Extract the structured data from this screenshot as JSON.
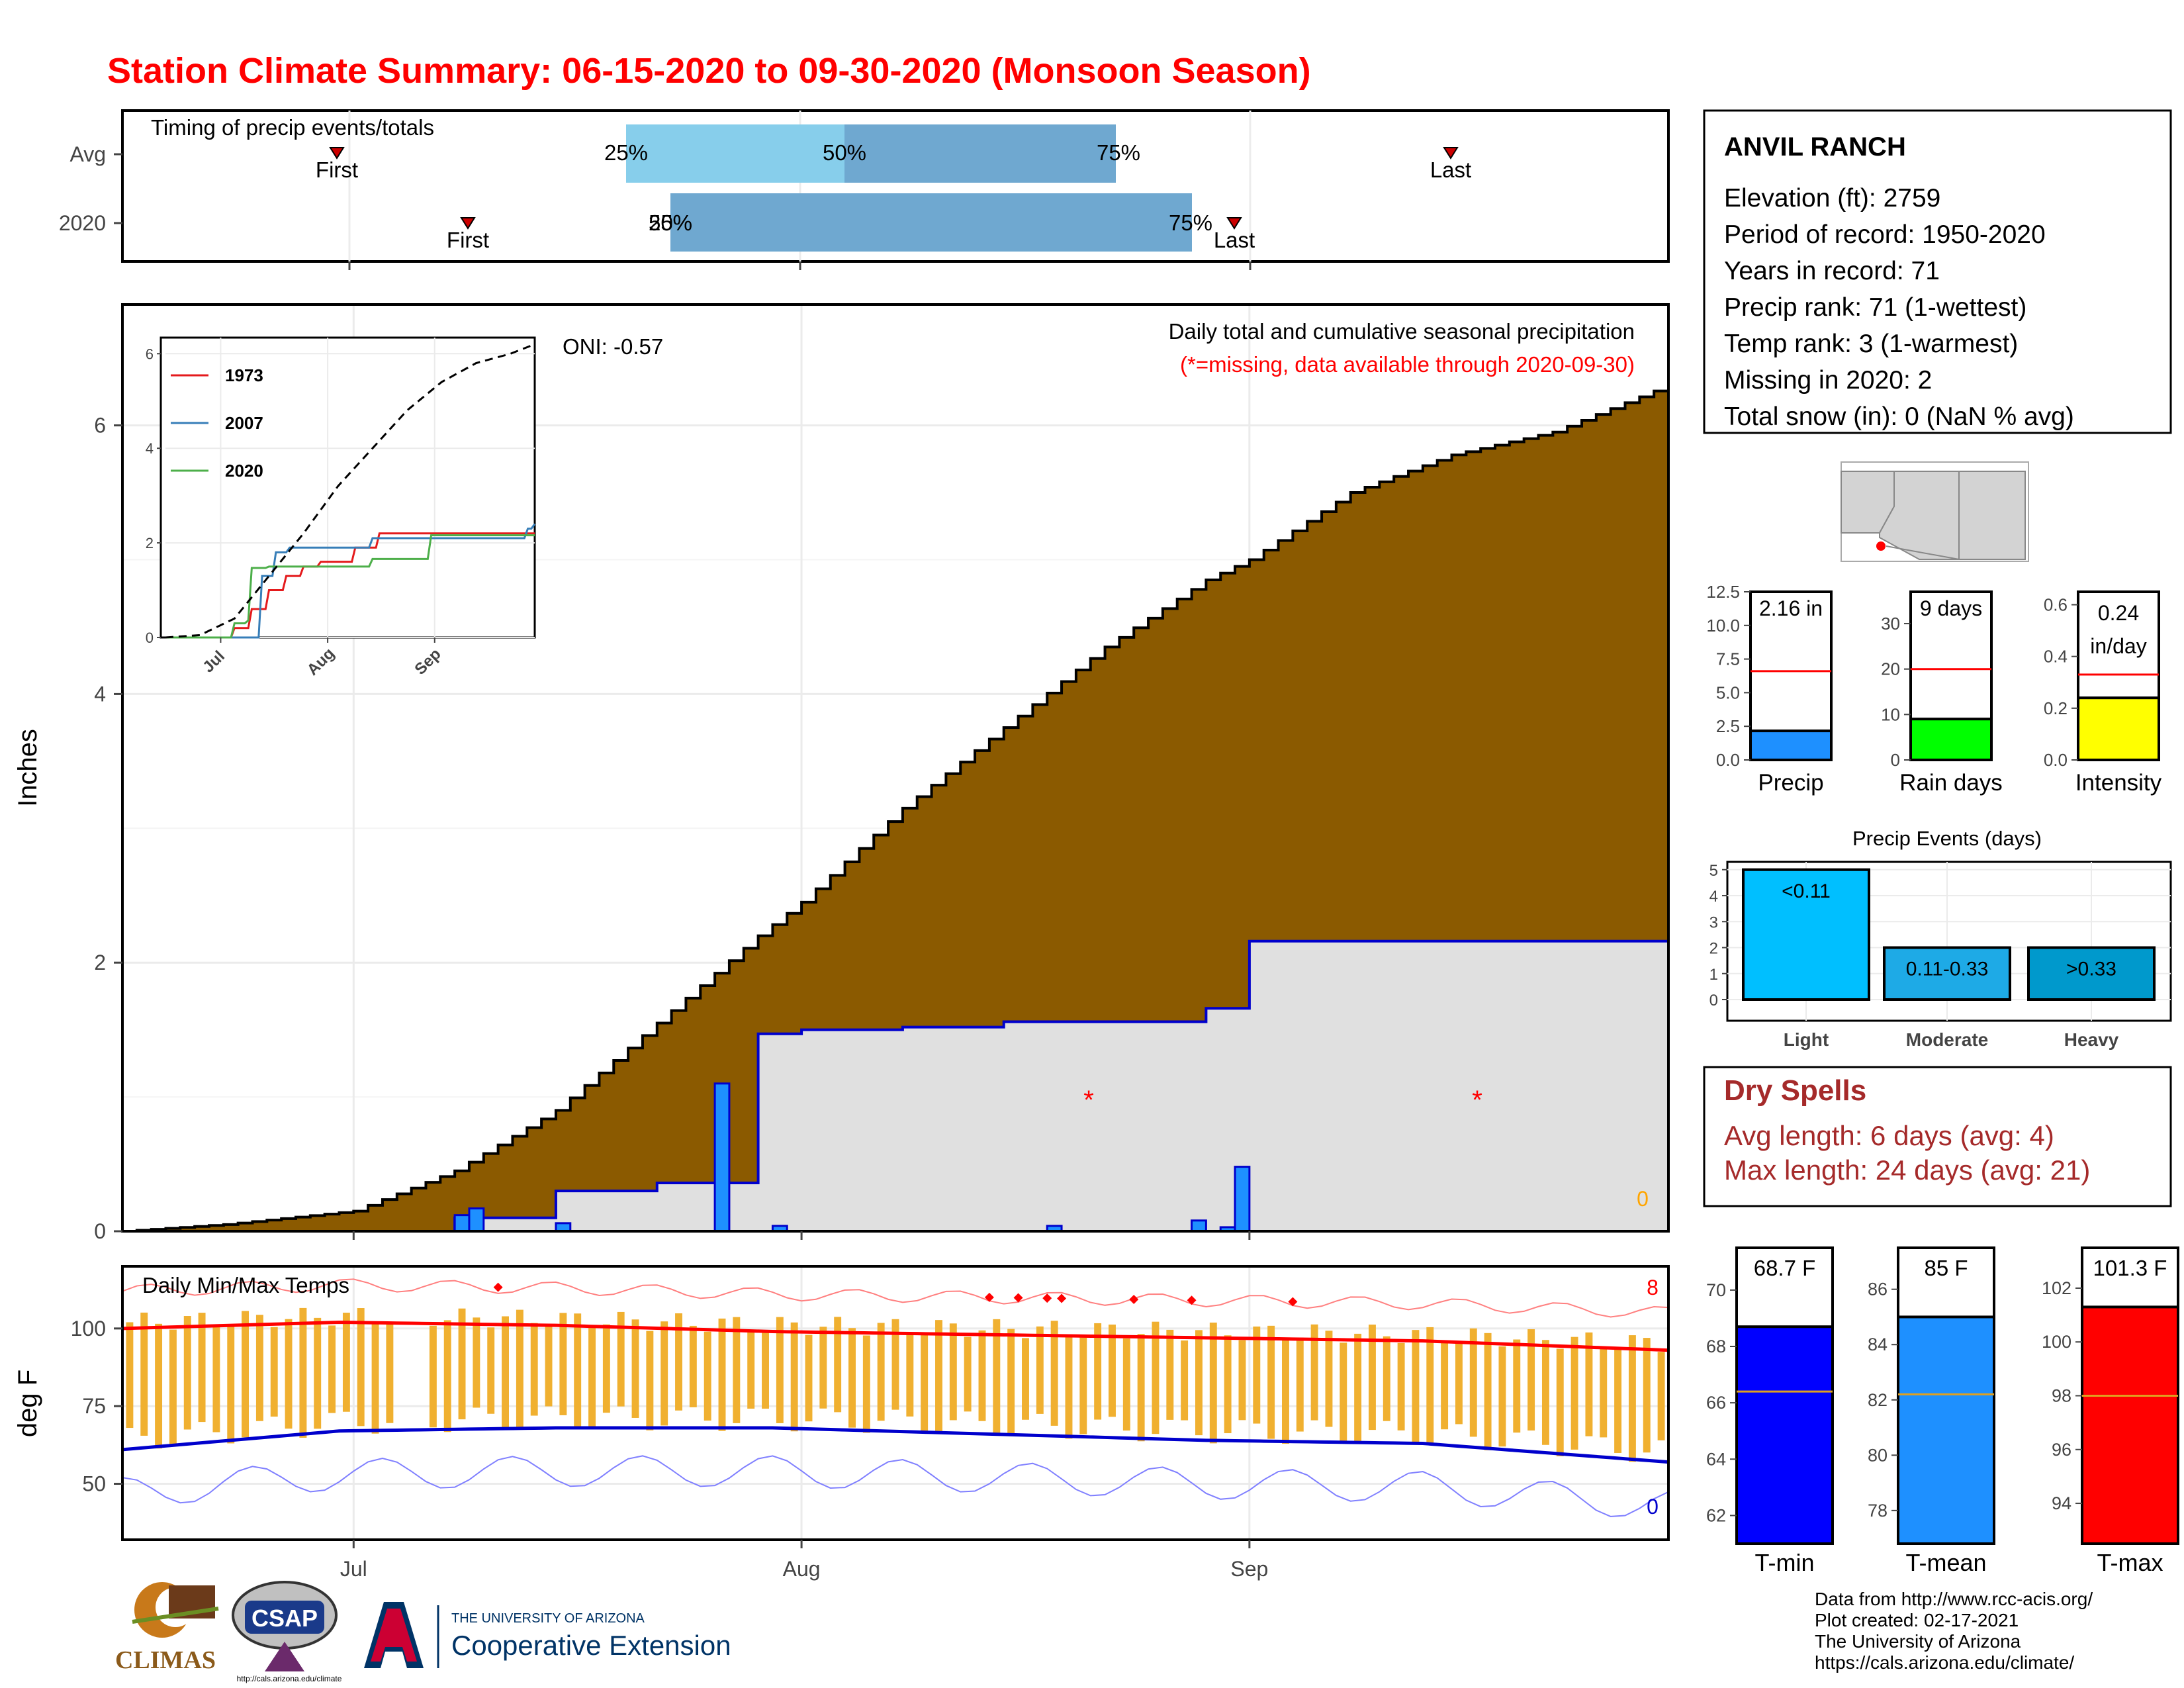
{
  "title": "Station Climate Summary: 06-15-2020 to 09-30-2020 (Monsoon Season)",
  "colors": {
    "title_red": "#ff0000",
    "brown": "#8b5a00",
    "light_blue": "#87ceeb",
    "mid_blue": "#6fa8d0",
    "bar_blue": "#1e90ff",
    "orange": "#f0b030",
    "red": "#ff0000",
    "navy": "#0000cc",
    "green": "#00ff00",
    "yellow": "#ffff00",
    "cyan": "#00bfff",
    "dry_red": "#a52a2a"
  },
  "timing": {
    "title": "Timing of precip events/totals",
    "rows": [
      "Avg",
      "2020"
    ],
    "avg": {
      "first_label": "First",
      "q25": "25%",
      "q50": "50%",
      "q75": "75%",
      "last_label": "Last"
    },
    "y2020": {
      "first_label": "First",
      "q25": "25%",
      "q50": "50%",
      "q75": "75%",
      "last_label": "Last"
    }
  },
  "main": {
    "ylabel": "Inches",
    "note1": "Daily total and cumulative seasonal precipitation",
    "note2": "(*=missing, data available through 2020-09-30)",
    "oni": "ONI: -0.57",
    "zero_label": "0",
    "yticks": [
      "0",
      "2",
      "4",
      "6"
    ],
    "xticks": [
      "Jul",
      "Aug",
      "Sep"
    ]
  },
  "inset": {
    "yticks": [
      "0",
      "2",
      "4",
      "6"
    ],
    "xticks": [
      "Jul",
      "Aug",
      "Sep"
    ],
    "legend": [
      {
        "name": "1973",
        "color": "#e41a1c"
      },
      {
        "name": "2007",
        "color": "#377eb8"
      },
      {
        "name": "2020",
        "color": "#4daf4a"
      }
    ]
  },
  "temps": {
    "title": "Daily Min/Max Temps",
    "ylabel": "deg F",
    "yticks": [
      "50",
      "75",
      "100"
    ],
    "count_high": "8",
    "count_low": "0"
  },
  "station": {
    "name": "ANVIL RANCH",
    "lines": [
      "Elevation (ft): 2759",
      "Period of record: 1950-2020",
      "Years in record: 71",
      "Precip rank: 71 (1-wettest)",
      "Temp rank: 3 (1-warmest)",
      "Missing in 2020: 2",
      "Total snow (in): 0 (NaN % avg)"
    ]
  },
  "gauges": [
    {
      "label": "Precip",
      "value_text": "2.16 in",
      "value": 2.16,
      "avg": 6.6,
      "max": 12.5,
      "ticks": [
        "0.0",
        "2.5",
        "5.0",
        "7.5",
        "10.0",
        "12.5"
      ],
      "color": "#1e90ff"
    },
    {
      "label": "Rain days",
      "value_text": "9 days",
      "value": 9,
      "avg": 20,
      "max": 37,
      "ticks": [
        "0",
        "10",
        "20",
        "30"
      ],
      "color": "#00ff00"
    },
    {
      "label": "Intensity",
      "value_text1": "0.24",
      "value_text2": "in/day",
      "value": 0.24,
      "avg": 0.33,
      "max": 0.65,
      "ticks": [
        "0.0",
        "0.2",
        "0.4",
        "0.6"
      ],
      "color": "#ffff00"
    }
  ],
  "events": {
    "title": "Precip Events (days)",
    "categories": [
      "Light",
      "Moderate",
      "Heavy"
    ],
    "bar_labels": [
      "<0.11",
      "0.11-0.33",
      ">0.33"
    ],
    "values": [
      5,
      2,
      2
    ],
    "yticks": [
      "0",
      "1",
      "2",
      "3",
      "4",
      "5"
    ]
  },
  "dry": {
    "title": "Dry Spells",
    "avg": "Avg length: 6 days (avg: 4)",
    "max": "Max length: 24 days (avg: 21)"
  },
  "temp_gauges": [
    {
      "label": "T-min",
      "value_text": "68.7 F",
      "value": 68.7,
      "avg": 66.4,
      "min": 61,
      "max": 71.5,
      "ticks": [
        "62",
        "64",
        "66",
        "68",
        "70"
      ],
      "color": "#0000ff"
    },
    {
      "label": "T-mean",
      "value_text": "85 F",
      "value": 85,
      "avg": 82.2,
      "min": 76.8,
      "max": 87.5,
      "ticks": [
        "78",
        "80",
        "82",
        "84",
        "86"
      ],
      "color": "#1e90ff"
    },
    {
      "label": "T-max",
      "value_text": "101.3 F",
      "value": 101.3,
      "avg": 98,
      "min": 92.5,
      "max": 103.5,
      "ticks": [
        "94",
        "96",
        "98",
        "100",
        "102"
      ],
      "color": "#ff0000"
    }
  ],
  "credits": [
    "Data from http://www.rcc-acis.org/",
    "Plot created: 02-17-2021",
    "The University of Arizona",
    "https://cals.arizona.edu/climate/"
  ],
  "logos": {
    "climas": "CLIMAS",
    "csap": "CSAP",
    "csap_url": "http://cals.arizona.edu/climate",
    "ua_line1": "THE UNIVERSITY OF ARIZONA",
    "ua_line2": "Cooperative Extension"
  },
  "chart_data": [
    {
      "type": "area",
      "title": "Daily total and cumulative seasonal precipitation",
      "ylabel": "Inches",
      "ylim": [
        0,
        6.9
      ],
      "x": [
        "06-15",
        "06-22",
        "07-01",
        "07-08",
        "07-15",
        "07-22",
        "07-29",
        "08-01",
        "08-08",
        "08-15",
        "08-22",
        "08-29",
        "09-01",
        "09-08",
        "09-15",
        "09-22",
        "09-30"
      ],
      "series": [
        {
          "values": [
            0.0,
            0.05,
            0.15,
            0.45,
            0.9,
            1.55,
            2.2,
            2.45,
            3.15,
            3.75,
            4.35,
            4.85,
            5.0,
            5.5,
            5.78,
            5.95,
            6.3
          ]
        },
        {
          "values": [
            0.0,
            0.0,
            0.0,
            0.1,
            0.3,
            0.36,
            1.47,
            1.5,
            1.52,
            1.56,
            1.56,
            1.66,
            2.16,
            2.16,
            2.16,
            2.16,
            2.16
          ]
        }
      ],
      "daily_bars": [
        {
          "date": "07-08",
          "value": 0.12
        },
        {
          "date": "07-09",
          "value": 0.17
        },
        {
          "date": "07-15",
          "value": 0.06
        },
        {
          "date": "07-26",
          "value": 1.1
        },
        {
          "date": "07-30",
          "value": 0.04
        },
        {
          "date": "08-18",
          "value": 0.04
        },
        {
          "date": "08-28",
          "value": 0.08
        },
        {
          "date": "08-30",
          "value": 0.03
        },
        {
          "date": "08-31",
          "value": 0.48
        }
      ]
    },
    {
      "type": "line",
      "title": "",
      "ylim": [
        0,
        6.2
      ],
      "x_range": [
        "06-15",
        "09-30"
      ],
      "series": [
        {
          "name": "1973",
          "points": [
            [
              0,
              0
            ],
            [
              20,
              0.2
            ],
            [
              25,
              0.6
            ],
            [
              30,
              1.0
            ],
            [
              35,
              1.3
            ],
            [
              40,
              1.5
            ],
            [
              45,
              1.6
            ],
            [
              55,
              1.9
            ],
            [
              62,
              2.2
            ],
            [
              107,
              2.2
            ]
          ]
        },
        {
          "name": "2007",
          "points": [
            [
              0,
              0
            ],
            [
              25,
              0
            ],
            [
              28,
              1.3
            ],
            [
              32,
              1.8
            ],
            [
              36,
              1.9
            ],
            [
              55,
              1.9
            ],
            [
              60,
              2.1
            ],
            [
              105,
              2.3
            ],
            [
              107,
              2.4
            ]
          ]
        },
        {
          "name": "2020",
          "points": [
            [
              0,
              0
            ],
            [
              17,
              0
            ],
            [
              20,
              0.3
            ],
            [
              24,
              0.36
            ],
            [
              25,
              1.47
            ],
            [
              30,
              1.5
            ],
            [
              60,
              1.66
            ],
            [
              77,
              2.16
            ],
            [
              107,
              2.16
            ]
          ]
        },
        {
          "name": "avg",
          "points": [
            [
              0,
              0
            ],
            [
              10,
              0.05
            ],
            [
              20,
              0.4
            ],
            [
              30,
              1.3
            ],
            [
              40,
              2.2
            ],
            [
              50,
              3.2
            ],
            [
              60,
              4.0
            ],
            [
              70,
              4.8
            ],
            [
              80,
              5.4
            ],
            [
              90,
              5.8
            ],
            [
              100,
              6.0
            ],
            [
              107,
              6.2
            ]
          ]
        }
      ]
    },
    {
      "type": "bar",
      "title": "Precip Events (days)",
      "categories": [
        "Light",
        "Moderate",
        "Heavy"
      ],
      "values": [
        5,
        2,
        2
      ],
      "ylim": [
        0,
        5.3
      ]
    },
    {
      "type": "line",
      "title": "Daily Min/Max Temps",
      "ylabel": "deg F",
      "ylim": [
        32,
        120
      ],
      "x_range": [
        "06-15",
        "09-30"
      ],
      "series": [
        {
          "name": "avg max",
          "points": [
            [
              0,
              100
            ],
            [
              15,
              102
            ],
            [
              30,
              101
            ],
            [
              45,
              99
            ],
            [
              60,
              98
            ],
            [
              75,
              97
            ],
            [
              90,
              96
            ],
            [
              107,
              93
            ]
          ]
        },
        {
          "name": "avg min",
          "points": [
            [
              0,
              61
            ],
            [
              15,
              67
            ],
            [
              30,
              68
            ],
            [
              45,
              68
            ],
            [
              60,
              66
            ],
            [
              75,
              64
            ],
            [
              90,
              63
            ],
            [
              107,
              57
            ]
          ]
        }
      ]
    }
  ]
}
